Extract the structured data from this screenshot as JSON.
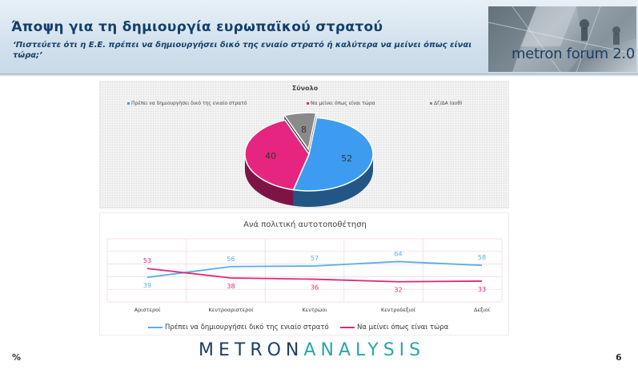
{
  "header": {
    "title": "Άποψη για τη δημιουργία ευρωπαϊκού στρατού",
    "subtitle": "‘Πιστεύετε ότι η Ε.Ε. πρέπει να δημιουργήσει δικό της ενιαίο στρατό ή καλύτερα να μείνει όπως είναι τώρα;’",
    "brand": "metron forum 2.0"
  },
  "footer": {
    "logo_part1": "METRON",
    "logo_part2": "ANALYSIS",
    "percent_symbol": "%",
    "page_number": "6"
  },
  "colors": {
    "blue": "#3d9cf0",
    "magenta": "#e5257f",
    "grey": "#8a8a8a",
    "line_blue": "#5aaee6",
    "line_magenta": "#e0277d",
    "title_navy": "#123f6e"
  },
  "chart_data": [
    {
      "type": "pie",
      "title": "Σύνολο",
      "legend_position": "top",
      "slices": [
        {
          "label": "Πρέπει να δημιουργήσει δικό της ενιαίο στρατό",
          "value": 52,
          "color": "#3d9cf0"
        },
        {
          "label": "Να μείνει όπως είναι τώρα",
          "value": 40,
          "color": "#e5257f"
        },
        {
          "label": "ΔΓ/ΔΑ (αυθ)",
          "value": 8,
          "color": "#8a8a8a"
        }
      ]
    },
    {
      "type": "line",
      "title": "Ανά πολιτική αυτοτοποθέτηση",
      "categories": [
        "Αριστεροί",
        "Κεντροαριστεροί",
        "Κεντρώοι",
        "Κεντροδεξιοί",
        "Δεξιοί"
      ],
      "ylim": [
        0,
        100
      ],
      "grid": true,
      "legend_position": "bottom",
      "series": [
        {
          "name": "Πρέπει να δημιουργήσει δικό της ενιαίο στρατό",
          "values": [
            39,
            56,
            57,
            64,
            58
          ],
          "color": "#5aaee6"
        },
        {
          "name": "Να μείνει όπως είναι τώρα",
          "values": [
            53,
            38,
            36,
            32,
            33
          ],
          "color": "#e0277d"
        }
      ]
    }
  ]
}
